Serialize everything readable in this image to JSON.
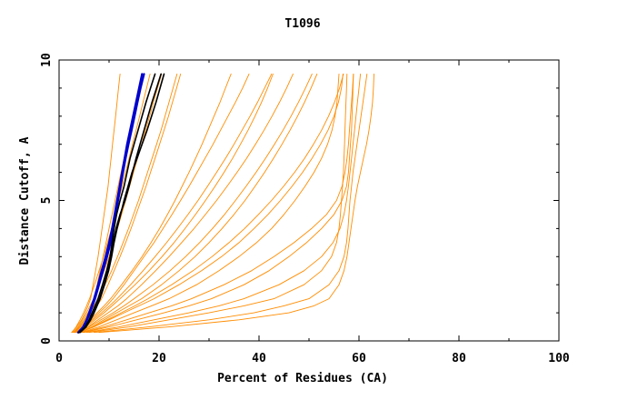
{
  "chart_data": {
    "type": "line",
    "title": "T1096",
    "xlabel": "Percent of Residues (CA)",
    "ylabel": "Distance Cutoff, A",
    "xlim": [
      0,
      100
    ],
    "ylim": [
      0,
      10
    ],
    "x_ticks": [
      0,
      20,
      40,
      60,
      80,
      100
    ],
    "y_ticks": [
      0,
      5,
      10
    ],
    "x_tick_labels": [
      "0",
      "20",
      "40",
      "60",
      "80",
      "100"
    ],
    "y_tick_labels": [
      "0",
      "5",
      "10"
    ],
    "grid": false,
    "legend": "none",
    "colors": {
      "models": "#ff8c00",
      "highlight_blue": "#0000cc",
      "highlight_black": "#000000"
    },
    "y_levels": [
      0.3,
      0.5,
      0.75,
      1.0,
      1.25,
      1.5,
      2.0,
      2.5,
      3.0,
      3.5,
      4.0,
      4.5,
      5.0,
      5.5,
      6.0,
      6.5,
      7.0,
      7.5,
      8.0,
      8.5,
      9.0,
      9.5
    ],
    "series": [
      {
        "group": "model",
        "x": [
          2.5,
          3.5,
          4.5,
          5.2,
          5.8,
          6.3,
          6.8,
          7.3,
          7.8,
          8.2,
          8.6,
          9.0,
          9.4,
          9.8,
          10.1,
          10.4,
          10.7,
          11.0,
          11.3,
          11.6,
          11.9,
          12.2
        ]
      },
      {
        "group": "model",
        "x": [
          3.0,
          4.0,
          5.0,
          5.8,
          6.5,
          7.0,
          7.6,
          8.2,
          8.8,
          9.4,
          10.0,
          10.6,
          11.2,
          11.8,
          12.4,
          13.0,
          13.6,
          14.2,
          14.8,
          15.4,
          16.0,
          16.6
        ]
      },
      {
        "group": "model",
        "x": [
          3.2,
          4.4,
          5.5,
          6.6,
          7.6,
          8.5,
          9.8,
          11.0,
          12.2,
          13.3,
          14.4,
          15.4,
          16.4,
          17.4,
          18.3,
          19.2,
          20.1,
          21.0,
          21.9,
          22.7,
          23.5,
          24.3
        ]
      },
      {
        "group": "model",
        "x": [
          3.5,
          5.0,
          6.5,
          8.0,
          9.5,
          10.8,
          13.0,
          15.0,
          17.0,
          19.0,
          20.8,
          22.6,
          24.3,
          26.0,
          27.6,
          29.2,
          30.8,
          32.3,
          33.8,
          35.3,
          36.7,
          38.0
        ]
      },
      {
        "group": "model",
        "x": [
          3.8,
          5.8,
          7.8,
          9.8,
          11.8,
          13.5,
          16.5,
          19.3,
          22.0,
          24.5,
          27.0,
          29.3,
          31.5,
          33.6,
          35.6,
          37.5,
          39.3,
          41.0,
          42.6,
          44.1,
          45.5,
          46.8
        ]
      },
      {
        "group": "model",
        "x": [
          4.0,
          6.5,
          9.0,
          11.5,
          14.0,
          16.5,
          20.5,
          24.0,
          27.2,
          30.0,
          32.6,
          35.0,
          37.2,
          39.2,
          41.1,
          42.9,
          44.6,
          46.2,
          47.7,
          49.1,
          50.4,
          51.6
        ]
      },
      {
        "group": "model",
        "x": [
          4.5,
          8.0,
          11.5,
          15.0,
          18.5,
          22.0,
          27.5,
          32.0,
          36.0,
          39.5,
          42.5,
          45.0,
          47.2,
          49.2,
          51.0,
          52.5,
          53.7,
          54.6,
          55.2,
          55.6,
          55.8,
          56.0
        ]
      },
      {
        "group": "model",
        "x": [
          5.0,
          10.0,
          15.5,
          21.0,
          26.0,
          30.5,
          37.0,
          42.0,
          46.0,
          49.5,
          52.5,
          55.0,
          56.6,
          57.5,
          57.9,
          58.1,
          58.3,
          58.5,
          58.6,
          58.7,
          58.8,
          58.9
        ]
      },
      {
        "group": "model",
        "x": [
          6.0,
          14.0,
          22.0,
          30.0,
          37.0,
          43.0,
          49.0,
          52.5,
          54.5,
          55.5,
          56.0,
          56.3,
          56.5,
          56.7,
          56.9,
          57.0,
          57.1,
          57.2,
          57.3,
          57.4,
          57.5,
          57.6
        ]
      },
      {
        "group": "model",
        "x": [
          7.0,
          18.0,
          30.0,
          39.0,
          45.0,
          50.0,
          54.0,
          56.0,
          57.0,
          57.5,
          57.8,
          58.0,
          58.2,
          58.5,
          58.8,
          59.2,
          59.6,
          60.0,
          60.4,
          60.8,
          61.2,
          61.6
        ]
      },
      {
        "group": "model",
        "x": [
          8.0,
          22.0,
          36.0,
          46.0,
          51.0,
          54.0,
          56.0,
          57.0,
          57.6,
          58.0,
          58.4,
          58.8,
          59.2,
          59.7,
          60.3,
          60.9,
          61.5,
          62.0,
          62.4,
          62.7,
          62.9,
          63.0
        ]
      },
      {
        "group": "model",
        "x": [
          3.3,
          4.8,
          6.2,
          7.6,
          9.0,
          10.3,
          12.5,
          14.6,
          16.6,
          18.4,
          20.1,
          21.7,
          23.2,
          24.6,
          26.0,
          27.3,
          28.6,
          29.8,
          31.0,
          32.2,
          33.3,
          34.4
        ]
      },
      {
        "group": "model",
        "x": [
          3.6,
          5.4,
          7.2,
          9.0,
          10.6,
          12.2,
          15.2,
          18.0,
          20.6,
          23.0,
          25.2,
          27.3,
          29.3,
          31.2,
          33.0,
          34.7,
          36.3,
          37.8,
          39.2,
          40.5,
          41.7,
          42.8
        ]
      },
      {
        "group": "model",
        "x": [
          4.2,
          7.0,
          10.0,
          13.0,
          16.0,
          19.0,
          24.0,
          28.5,
          32.5,
          36.0,
          39.0,
          41.8,
          44.3,
          46.6,
          48.7,
          50.6,
          52.3,
          53.8,
          55.0,
          55.9,
          56.5,
          56.8
        ]
      },
      {
        "group": "model",
        "x": [
          3.1,
          4.2,
          5.2,
          6.1,
          7.0,
          7.8,
          9.2,
          10.5,
          11.7,
          12.8,
          13.9,
          14.9,
          15.9,
          16.8,
          17.7,
          18.6,
          19.5,
          20.4,
          21.2,
          22.0,
          22.8,
          23.6
        ]
      },
      {
        "group": "model",
        "x": [
          3.4,
          5.1,
          6.8,
          8.5,
          10.1,
          11.6,
          14.3,
          16.8,
          19.2,
          21.5,
          23.7,
          25.8,
          27.8,
          29.7,
          31.5,
          33.3,
          35.0,
          36.6,
          38.2,
          39.7,
          41.1,
          42.5
        ]
      },
      {
        "group": "model",
        "x": [
          5.5,
          12.0,
          19.0,
          26.0,
          32.0,
          37.0,
          44.0,
          49.0,
          52.5,
          54.8,
          56.2,
          57.0,
          57.5,
          57.9,
          58.2,
          58.5,
          58.8,
          59.1,
          59.4,
          59.7,
          60.0,
          60.3
        ]
      },
      {
        "group": "model",
        "x": [
          4.8,
          9.0,
          13.5,
          18.0,
          22.5,
          26.5,
          33.0,
          38.5,
          43.0,
          47.0,
          50.5,
          53.5,
          55.5,
          56.6,
          57.2,
          57.6,
          57.9,
          58.1,
          58.3,
          58.5,
          58.7,
          58.9
        ]
      },
      {
        "group": "model",
        "x": [
          2.8,
          3.8,
          4.7,
          5.5,
          6.2,
          6.9,
          8.0,
          9.0,
          10.0,
          10.9,
          11.7,
          12.5,
          13.3,
          14.1,
          14.9,
          15.7,
          16.5,
          17.3,
          18.1,
          18.9,
          19.7,
          20.5
        ]
      },
      {
        "group": "model",
        "x": [
          3.7,
          6.0,
          8.4,
          10.8,
          13.0,
          15.0,
          18.8,
          22.2,
          25.3,
          28.1,
          30.7,
          33.1,
          35.3,
          37.4,
          39.4,
          41.3,
          43.1,
          44.8,
          46.4,
          47.9,
          49.3,
          50.6
        ]
      },
      {
        "group": "model",
        "x": [
          4.1,
          6.8,
          9.6,
          12.4,
          15.2,
          17.8,
          22.5,
          26.8,
          30.6,
          34.0,
          37.1,
          39.9,
          42.5,
          44.9,
          47.1,
          49.1,
          50.9,
          52.5,
          53.9,
          55.1,
          56.1,
          56.9
        ]
      },
      {
        "group": "model",
        "x": [
          2.6,
          3.4,
          4.2,
          4.9,
          5.5,
          6.1,
          7.1,
          8.0,
          8.9,
          9.7,
          10.5,
          11.2,
          11.9,
          12.6,
          13.3,
          14.0,
          14.7,
          15.4,
          16.1,
          16.8,
          17.5,
          18.2
        ]
      },
      {
        "group": "blue",
        "x": [
          3.8,
          4.8,
          5.5,
          6.0,
          6.5,
          7.0,
          7.8,
          8.5,
          9.3,
          10.0,
          10.6,
          11.1,
          11.6,
          12.1,
          12.6,
          13.1,
          13.6,
          14.2,
          14.8,
          15.4,
          16.0,
          16.6
        ]
      },
      {
        "group": "blue",
        "x": [
          3.9,
          4.9,
          5.6,
          6.2,
          6.7,
          7.2,
          8.0,
          8.8,
          9.6,
          10.3,
          10.8,
          11.3,
          11.8,
          12.3,
          12.8,
          13.3,
          13.9,
          14.5,
          15.1,
          15.7,
          16.3,
          17.0
        ]
      },
      {
        "group": "black",
        "x": [
          4.0,
          5.2,
          6.0,
          6.6,
          7.2,
          7.8,
          8.7,
          9.5,
          10.2,
          10.6,
          11.0,
          11.5,
          12.2,
          13.0,
          13.6,
          14.2,
          15.0,
          15.8,
          16.6,
          17.4,
          18.3,
          19.2
        ]
      },
      {
        "group": "black",
        "x": [
          4.1,
          5.3,
          6.2,
          6.9,
          7.5,
          8.1,
          9.0,
          9.8,
          10.4,
          10.8,
          11.4,
          12.2,
          13.2,
          14.0,
          14.7,
          15.4,
          16.2,
          17.0,
          17.8,
          18.6,
          19.5,
          20.4
        ]
      },
      {
        "group": "black",
        "x": [
          4.2,
          5.4,
          6.3,
          7.0,
          7.6,
          8.2,
          9.1,
          9.9,
          10.5,
          11.0,
          11.6,
          12.3,
          13.0,
          13.8,
          14.6,
          15.6,
          16.6,
          17.6,
          18.5,
          19.4,
          20.2,
          21.0
        ]
      }
    ]
  }
}
